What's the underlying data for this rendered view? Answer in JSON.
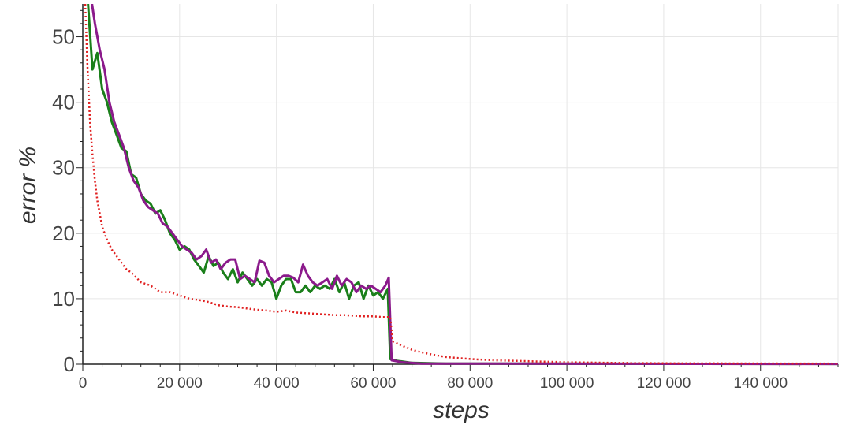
{
  "chart_data": {
    "type": "line",
    "title": "",
    "xlabel": "steps",
    "ylabel": "error %",
    "xlim": [
      0,
      156000
    ],
    "ylim": [
      0,
      55
    ],
    "grid": true,
    "legend": "none",
    "x_ticks": [
      0,
      20000,
      40000,
      60000,
      80000,
      100000,
      120000,
      140000
    ],
    "x_tick_labels": [
      "0",
      "20 000",
      "40 000",
      "60 000",
      "80 000",
      "100 000",
      "120 000",
      "140 000"
    ],
    "y_ticks": [
      0,
      10,
      20,
      30,
      40,
      50
    ],
    "y_tick_labels": [
      "0",
      "10",
      "20",
      "30",
      "40",
      "50"
    ],
    "series": [
      {
        "color": "#1a7f1a",
        "style": "solid",
        "points": [
          [
            1000,
            56
          ],
          [
            2000,
            45
          ],
          [
            3000,
            47.5
          ],
          [
            4000,
            42
          ],
          [
            5000,
            40
          ],
          [
            6000,
            37
          ],
          [
            7000,
            35
          ],
          [
            8000,
            33
          ],
          [
            9000,
            32.5
          ],
          [
            10000,
            29
          ],
          [
            11000,
            28.5
          ],
          [
            12000,
            26
          ],
          [
            13000,
            25
          ],
          [
            14000,
            24.5
          ],
          [
            15000,
            23
          ],
          [
            16000,
            23.5
          ],
          [
            17000,
            22
          ],
          [
            18000,
            20
          ],
          [
            19000,
            19
          ],
          [
            20000,
            17.5
          ],
          [
            21000,
            18
          ],
          [
            22000,
            17.5
          ],
          [
            23000,
            16
          ],
          [
            24000,
            15
          ],
          [
            25000,
            14
          ],
          [
            26000,
            16.5
          ],
          [
            27000,
            15
          ],
          [
            28000,
            15.5
          ],
          [
            29000,
            14
          ],
          [
            30000,
            13
          ],
          [
            31000,
            14.5
          ],
          [
            32000,
            12.5
          ],
          [
            33000,
            14
          ],
          [
            34000,
            13
          ],
          [
            35000,
            12
          ],
          [
            36000,
            13
          ],
          [
            37000,
            12
          ],
          [
            38000,
            13
          ],
          [
            39000,
            12.5
          ],
          [
            40000,
            10
          ],
          [
            41000,
            12
          ],
          [
            42000,
            13
          ],
          [
            43000,
            13
          ],
          [
            44000,
            11
          ],
          [
            45000,
            11
          ],
          [
            46000,
            12
          ],
          [
            47000,
            11
          ],
          [
            48000,
            12
          ],
          [
            49000,
            11.5
          ],
          [
            50000,
            12
          ],
          [
            51000,
            11.5
          ],
          [
            52000,
            13
          ],
          [
            53000,
            11
          ],
          [
            54000,
            12.5
          ],
          [
            55000,
            10
          ],
          [
            56000,
            12
          ],
          [
            57000,
            12.5
          ],
          [
            58000,
            10
          ],
          [
            59000,
            12
          ],
          [
            60000,
            10.5
          ],
          [
            61000,
            11
          ],
          [
            62000,
            10
          ],
          [
            63000,
            11.5
          ],
          [
            63500,
            0.8
          ],
          [
            65000,
            0.5
          ],
          [
            68000,
            0.2
          ],
          [
            75000,
            0.1
          ],
          [
            156000,
            0.05
          ]
        ]
      },
      {
        "color": "#8b1a8b",
        "style": "solid",
        "points": [
          [
            1500,
            57
          ],
          [
            2500,
            52
          ],
          [
            3500,
            48
          ],
          [
            4500,
            45
          ],
          [
            5500,
            40
          ],
          [
            6500,
            37
          ],
          [
            7500,
            35
          ],
          [
            8500,
            33
          ],
          [
            9500,
            30
          ],
          [
            10500,
            28
          ],
          [
            11500,
            27
          ],
          [
            12500,
            25
          ],
          [
            13500,
            24
          ],
          [
            14500,
            23.5
          ],
          [
            15500,
            23
          ],
          [
            16500,
            21.5
          ],
          [
            17500,
            21
          ],
          [
            18500,
            20
          ],
          [
            19500,
            19
          ],
          [
            20500,
            18
          ],
          [
            21500,
            17.5
          ],
          [
            22500,
            17
          ],
          [
            23500,
            16
          ],
          [
            24500,
            16.5
          ],
          [
            25500,
            17.5
          ],
          [
            26500,
            15.5
          ],
          [
            27500,
            16
          ],
          [
            28500,
            14.5
          ],
          [
            29500,
            15.5
          ],
          [
            30500,
            16
          ],
          [
            31500,
            16
          ],
          [
            32500,
            13
          ],
          [
            33500,
            13.5
          ],
          [
            34500,
            13
          ],
          [
            35500,
            12.5
          ],
          [
            36500,
            15.8
          ],
          [
            37500,
            15.5
          ],
          [
            38500,
            13.5
          ],
          [
            39500,
            12.5
          ],
          [
            40500,
            13
          ],
          [
            41500,
            13.5
          ],
          [
            42500,
            13.5
          ],
          [
            43500,
            13.2
          ],
          [
            44500,
            12.5
          ],
          [
            45500,
            15.2
          ],
          [
            46500,
            13.5
          ],
          [
            47500,
            12.5
          ],
          [
            48500,
            12
          ],
          [
            49500,
            12.5
          ],
          [
            50500,
            13
          ],
          [
            51500,
            11.5
          ],
          [
            52500,
            13.5
          ],
          [
            53500,
            12
          ],
          [
            54500,
            13
          ],
          [
            55500,
            12.5
          ],
          [
            56500,
            11
          ],
          [
            57500,
            12
          ],
          [
            58500,
            11.5
          ],
          [
            59500,
            12
          ],
          [
            60500,
            11.5
          ],
          [
            61500,
            11
          ],
          [
            62500,
            12
          ],
          [
            63200,
            13.2
          ],
          [
            63800,
            0.6
          ],
          [
            66000,
            0.3
          ],
          [
            70000,
            0.1
          ],
          [
            156000,
            0.05
          ]
        ]
      },
      {
        "color": "#e02020",
        "style": "dotted",
        "points": [
          [
            500,
            55
          ],
          [
            1000,
            45
          ],
          [
            1500,
            37
          ],
          [
            2000,
            32
          ],
          [
            2500,
            28
          ],
          [
            3000,
            25
          ],
          [
            4000,
            21
          ],
          [
            5000,
            19
          ],
          [
            6000,
            17.5
          ],
          [
            7000,
            16.5
          ],
          [
            8000,
            15.5
          ],
          [
            9000,
            14.5
          ],
          [
            10000,
            14
          ],
          [
            12000,
            12.5
          ],
          [
            14000,
            12
          ],
          [
            16000,
            11
          ],
          [
            18000,
            11
          ],
          [
            20000,
            10.5
          ],
          [
            22000,
            10
          ],
          [
            24000,
            9.8
          ],
          [
            26000,
            9.5
          ],
          [
            28000,
            9
          ],
          [
            30000,
            8.8
          ],
          [
            32000,
            8.7
          ],
          [
            34000,
            8.5
          ],
          [
            36000,
            8.3
          ],
          [
            38000,
            8.2
          ],
          [
            40000,
            8
          ],
          [
            42000,
            8.2
          ],
          [
            44000,
            7.9
          ],
          [
            46000,
            7.8
          ],
          [
            48000,
            7.7
          ],
          [
            50000,
            7.6
          ],
          [
            52000,
            7.5
          ],
          [
            54000,
            7.5
          ],
          [
            56000,
            7.4
          ],
          [
            58000,
            7.3
          ],
          [
            60000,
            7.3
          ],
          [
            62000,
            7.2
          ],
          [
            63500,
            7.2
          ],
          [
            64000,
            3.5
          ],
          [
            66000,
            2.8
          ],
          [
            68000,
            2.2
          ],
          [
            70000,
            1.8
          ],
          [
            72000,
            1.5
          ],
          [
            75000,
            1.1
          ],
          [
            80000,
            0.8
          ],
          [
            85000,
            0.6
          ],
          [
            90000,
            0.5
          ],
          [
            95000,
            0.4
          ],
          [
            100000,
            0.3
          ],
          [
            110000,
            0.2
          ],
          [
            120000,
            0.15
          ],
          [
            156000,
            0.1
          ]
        ]
      }
    ]
  }
}
